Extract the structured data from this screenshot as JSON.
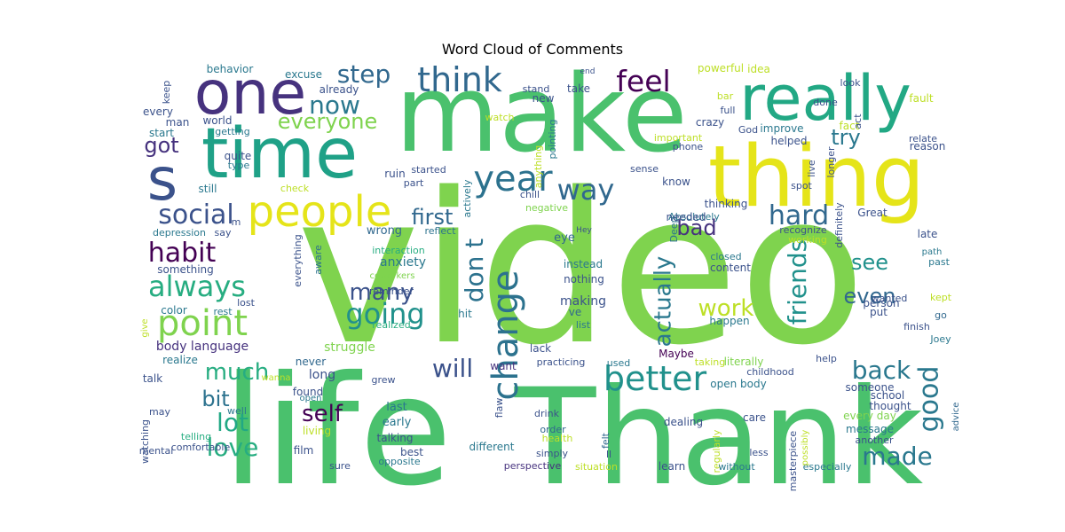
{
  "chart_data": {
    "type": "wordcloud",
    "title": "Word Cloud of Comments",
    "colormap": "viridis",
    "background": "#ffffff",
    "words": [
      {
        "text": "video",
        "weight": 100,
        "color": "#7fd34e"
      },
      {
        "text": "life",
        "weight": 52,
        "color": "#4ac16d"
      },
      {
        "text": "Thank",
        "weight": 52,
        "color": "#4ac16d"
      },
      {
        "text": "make",
        "weight": 42,
        "color": "#4ac16d"
      },
      {
        "text": "thing",
        "weight": 33,
        "color": "#e5e419"
      },
      {
        "text": "time",
        "weight": 31,
        "color": "#1fa187"
      },
      {
        "text": "really",
        "weight": 28,
        "color": "#22a884"
      },
      {
        "text": "one",
        "weight": 27,
        "color": "#46327e"
      },
      {
        "text": "s",
        "weight": 26,
        "color": "#3b528b"
      },
      {
        "text": "people",
        "weight": 19,
        "color": "#e5e419"
      },
      {
        "text": "year",
        "weight": 17,
        "color": "#2c728e"
      },
      {
        "text": "change",
        "weight": 17,
        "color": "#2c728e"
      },
      {
        "text": "think",
        "weight": 15,
        "color": "#31688e"
      },
      {
        "text": "better",
        "weight": 14,
        "color": "#21918c"
      },
      {
        "text": "point",
        "weight": 14,
        "color": "#7fd34e"
      },
      {
        "text": "feel",
        "weight": 13,
        "color": "#440154"
      },
      {
        "text": "going",
        "weight": 12,
        "color": "#21918c"
      },
      {
        "text": "way",
        "weight": 12,
        "color": "#31688e"
      },
      {
        "text": "always",
        "weight": 12,
        "color": "#27ad81"
      },
      {
        "text": "habit",
        "weight": 11,
        "color": "#440154"
      },
      {
        "text": "social",
        "weight": 11,
        "color": "#3b528b"
      },
      {
        "text": "hard",
        "weight": 11,
        "color": "#31688e"
      },
      {
        "text": "good",
        "weight": 11,
        "color": "#2a788e"
      },
      {
        "text": "friends",
        "weight": 10,
        "color": "#21918c"
      },
      {
        "text": "will",
        "weight": 10,
        "color": "#3b528b"
      },
      {
        "text": "now",
        "weight": 10,
        "color": "#2a788e"
      },
      {
        "text": "don t",
        "weight": 10,
        "color": "#2c728e"
      },
      {
        "text": "actually",
        "weight": 10,
        "color": "#2a788e"
      },
      {
        "text": "lot",
        "weight": 10,
        "color": "#22a884"
      },
      {
        "text": "step",
        "weight": 10,
        "color": "#31688e"
      },
      {
        "text": "many",
        "weight": 9,
        "color": "#3b528b"
      },
      {
        "text": "back",
        "weight": 9,
        "color": "#2a788e"
      },
      {
        "text": "made",
        "weight": 9,
        "color": "#2a788e"
      },
      {
        "text": "work",
        "weight": 9,
        "color": "#bddf26"
      },
      {
        "text": "love",
        "weight": 9,
        "color": "#27ad81"
      },
      {
        "text": "self",
        "weight": 9,
        "color": "#440154"
      },
      {
        "text": "much",
        "weight": 9,
        "color": "#27ad81"
      },
      {
        "text": "everyone",
        "weight": 9,
        "color": "#7fd34e"
      },
      {
        "text": "first",
        "weight": 8,
        "color": "#31688e"
      },
      {
        "text": "try",
        "weight": 8,
        "color": "#2a788e"
      },
      {
        "text": "bad",
        "weight": 8,
        "color": "#46327e"
      },
      {
        "text": "see",
        "weight": 8,
        "color": "#21918c"
      },
      {
        "text": "even",
        "weight": 8,
        "color": "#31688e"
      },
      {
        "text": "bit",
        "weight": 8,
        "color": "#2c728e"
      },
      {
        "text": "got",
        "weight": 8,
        "color": "#46327e"
      },
      {
        "text": "body language",
        "weight": 6,
        "color": "#46327e"
      },
      {
        "text": "struggle",
        "weight": 5,
        "color": "#7fd34e"
      },
      {
        "text": "anxiety",
        "weight": 5,
        "color": "#2a788e"
      },
      {
        "text": "making",
        "weight": 5,
        "color": "#3b528b"
      },
      {
        "text": "content",
        "weight": 4,
        "color": "#3b528b"
      },
      {
        "text": "actively",
        "weight": 3,
        "color": "#2a788e"
      },
      {
        "text": "reflect",
        "weight": 3,
        "color": "#2c728e"
      },
      {
        "text": "negative",
        "weight": 3,
        "color": "#7fd34e"
      },
      {
        "text": "eye",
        "weight": 4,
        "color": "#31688e"
      },
      {
        "text": "wrong",
        "weight": 4,
        "color": "#31688e"
      },
      {
        "text": "interaction",
        "weight": 3,
        "color": "#27ad81"
      },
      {
        "text": "everything",
        "weight": 3,
        "color": "#3b528b"
      },
      {
        "text": "aware",
        "weight": 3,
        "color": "#2c728e"
      },
      {
        "text": "Deep",
        "weight": 3,
        "color": "#2c728e"
      },
      {
        "text": "thinking",
        "weight": 4,
        "color": "#3b528b"
      },
      {
        "text": "Absolutely",
        "weight": 3,
        "color": "#2a788e"
      },
      {
        "text": "depression",
        "weight": 3,
        "color": "#2a788e"
      },
      {
        "text": "reminder",
        "weight": 3,
        "color": "#3b528b"
      },
      {
        "text": "coworkers",
        "weight": 3,
        "color": "#7fd34e"
      },
      {
        "text": "realized",
        "weight": 3,
        "color": "#27ad81"
      },
      {
        "text": "instead",
        "weight": 4,
        "color": "#2a788e"
      },
      {
        "text": "nothing",
        "weight": 4,
        "color": "#3b528b"
      },
      {
        "text": "ve",
        "weight": 4,
        "color": "#31688e"
      },
      {
        "text": "list",
        "weight": 3,
        "color": "#2a788e"
      },
      {
        "text": "hit",
        "weight": 4,
        "color": "#2a788e"
      },
      {
        "text": "lack",
        "weight": 4,
        "color": "#3b528b"
      },
      {
        "text": "Maybe",
        "weight": 4,
        "color": "#440154"
      },
      {
        "text": "practicing",
        "weight": 4,
        "color": "#3b528b"
      },
      {
        "text": "used",
        "weight": 4,
        "color": "#2a788e"
      },
      {
        "text": "want",
        "weight": 4,
        "color": "#46327e"
      },
      {
        "text": "realize",
        "weight": 4,
        "color": "#2a788e"
      },
      {
        "text": "never",
        "weight": 4,
        "color": "#31688e"
      },
      {
        "text": "long",
        "weight": 5,
        "color": "#3b528b"
      },
      {
        "text": "found",
        "weight": 5,
        "color": "#3b528b"
      },
      {
        "text": "last",
        "weight": 5,
        "color": "#2a788e"
      },
      {
        "text": "early",
        "weight": 5,
        "color": "#2a788e"
      },
      {
        "text": "living",
        "weight": 5,
        "color": "#bddf26"
      },
      {
        "text": "film",
        "weight": 5,
        "color": "#3b528b"
      },
      {
        "text": "talking",
        "weight": 4,
        "color": "#3b528b"
      },
      {
        "text": "best",
        "weight": 5,
        "color": "#3b528b"
      },
      {
        "text": "different",
        "weight": 5,
        "color": "#2a788e"
      },
      {
        "text": "opposite",
        "weight": 3,
        "color": "#2a788e"
      },
      {
        "text": "comfortable",
        "weight": 3,
        "color": "#3b528b"
      },
      {
        "text": "telling",
        "weight": 3,
        "color": "#27ad81"
      },
      {
        "text": "grew",
        "weight": 3,
        "color": "#3b528b"
      },
      {
        "text": "flaw",
        "weight": 3,
        "color": "#3b528b"
      },
      {
        "text": "drink",
        "weight": 3,
        "color": "#3b528b"
      },
      {
        "text": "order",
        "weight": 3,
        "color": "#31688e"
      },
      {
        "text": "health",
        "weight": 3,
        "color": "#bddf26"
      },
      {
        "text": "simply",
        "weight": 3,
        "color": "#3b528b"
      },
      {
        "text": "ll",
        "weight": 3,
        "color": "#3b528b"
      },
      {
        "text": "felt",
        "weight": 3,
        "color": "#31688e"
      },
      {
        "text": "perspective",
        "weight": 3,
        "color": "#46327e"
      },
      {
        "text": "situation",
        "weight": 3,
        "color": "#bddf26"
      },
      {
        "text": "learn",
        "weight": 4,
        "color": "#3b528b"
      },
      {
        "text": "dealing",
        "weight": 4,
        "color": "#3b528b"
      },
      {
        "text": "regularly",
        "weight": 3,
        "color": "#bddf26"
      },
      {
        "text": "without",
        "weight": 3,
        "color": "#2a788e"
      },
      {
        "text": "care",
        "weight": 4,
        "color": "#3b528b"
      },
      {
        "text": "less",
        "weight": 3,
        "color": "#3b528b"
      },
      {
        "text": "masterpiece",
        "weight": 3,
        "color": "#3b528b"
      },
      {
        "text": "especially",
        "weight": 3,
        "color": "#2a788e"
      },
      {
        "text": "another",
        "weight": 3,
        "color": "#3b528b"
      },
      {
        "text": "message",
        "weight": 4,
        "color": "#2a788e"
      },
      {
        "text": "every day",
        "weight": 4,
        "color": "#7fd34e"
      },
      {
        "text": "thought",
        "weight": 4,
        "color": "#3b528b"
      },
      {
        "text": "school",
        "weight": 4,
        "color": "#3b528b"
      },
      {
        "text": "someone",
        "weight": 4,
        "color": "#3b528b"
      },
      {
        "text": "open body",
        "weight": 4,
        "color": "#2a788e"
      },
      {
        "text": "literally",
        "weight": 4,
        "color": "#7fd34e"
      },
      {
        "text": "childhood",
        "weight": 3,
        "color": "#3b528b"
      },
      {
        "text": "taking",
        "weight": 3,
        "color": "#bddf26"
      },
      {
        "text": "help",
        "weight": 3,
        "color": "#3b528b"
      },
      {
        "text": "possibly",
        "weight": 3,
        "color": "#bddf26"
      },
      {
        "text": "advice",
        "weight": 3,
        "color": "#31688e"
      },
      {
        "text": "Joey",
        "weight": 3,
        "color": "#2a788e"
      },
      {
        "text": "finish",
        "weight": 3,
        "color": "#3b528b"
      },
      {
        "text": "go",
        "weight": 3,
        "color": "#31688e"
      },
      {
        "text": "kept",
        "weight": 3,
        "color": "#bddf26"
      },
      {
        "text": "put",
        "weight": 4,
        "color": "#3b528b"
      },
      {
        "text": "person",
        "weight": 4,
        "color": "#3b528b"
      },
      {
        "text": "wanted",
        "weight": 3,
        "color": "#3b528b"
      },
      {
        "text": "past",
        "weight": 3,
        "color": "#2a788e"
      },
      {
        "text": "path",
        "weight": 3,
        "color": "#2a788e"
      },
      {
        "text": "late",
        "weight": 4,
        "color": "#3b528b"
      },
      {
        "text": "happen",
        "weight": 4,
        "color": "#2a788e"
      },
      {
        "text": "closed",
        "weight": 3,
        "color": "#2a788e"
      },
      {
        "text": "working",
        "weight": 3,
        "color": "#bddf26"
      },
      {
        "text": "recognize",
        "weight": 3,
        "color": "#3b528b"
      },
      {
        "text": "Great",
        "weight": 4,
        "color": "#3b528b"
      },
      {
        "text": "definitely",
        "weight": 3,
        "color": "#3b528b"
      },
      {
        "text": "spot",
        "weight": 3,
        "color": "#3b528b"
      },
      {
        "text": "live",
        "weight": 3,
        "color": "#3b528b"
      },
      {
        "text": "longer",
        "weight": 3,
        "color": "#3b528b"
      },
      {
        "text": "reason",
        "weight": 4,
        "color": "#3b528b"
      },
      {
        "text": "relate",
        "weight": 3,
        "color": "#3b528b"
      },
      {
        "text": "fact",
        "weight": 4,
        "color": "#bddf26"
      },
      {
        "text": "act",
        "weight": 3,
        "color": "#3b528b"
      },
      {
        "text": "look",
        "weight": 3,
        "color": "#3b528b"
      },
      {
        "text": "done",
        "weight": 3,
        "color": "#3b528b"
      },
      {
        "text": "fault",
        "weight": 4,
        "color": "#bddf26"
      },
      {
        "text": "idea",
        "weight": 4,
        "color": "#bddf26"
      },
      {
        "text": "powerful",
        "weight": 4,
        "color": "#bddf26"
      },
      {
        "text": "end",
        "weight": 2,
        "color": "#3b528b"
      },
      {
        "text": "new",
        "weight": 4,
        "color": "#3b528b"
      },
      {
        "text": "stand",
        "weight": 3,
        "color": "#3b528b"
      },
      {
        "text": "take",
        "weight": 4,
        "color": "#3b528b"
      },
      {
        "text": "bar",
        "weight": 3,
        "color": "#bddf26"
      },
      {
        "text": "full",
        "weight": 3,
        "color": "#3b528b"
      },
      {
        "text": "God",
        "weight": 3,
        "color": "#3b528b"
      },
      {
        "text": "crazy",
        "weight": 4,
        "color": "#3b528b"
      },
      {
        "text": "important",
        "weight": 3,
        "color": "#bddf26"
      },
      {
        "text": "phone",
        "weight": 3,
        "color": "#3b528b"
      },
      {
        "text": "improve",
        "weight": 4,
        "color": "#2a788e"
      },
      {
        "text": "helped",
        "weight": 4,
        "color": "#3b528b"
      },
      {
        "text": "watch",
        "weight": 3,
        "color": "#bddf26"
      },
      {
        "text": "pointing",
        "weight": 3,
        "color": "#2a788e"
      },
      {
        "text": "anything",
        "weight": 3,
        "color": "#bddf26"
      },
      {
        "text": "sense",
        "weight": 3,
        "color": "#3b528b"
      },
      {
        "text": "chill",
        "weight": 3,
        "color": "#3b528b"
      },
      {
        "text": "Hey",
        "weight": 2,
        "color": "#3b528b"
      },
      {
        "text": "know",
        "weight": 4,
        "color": "#3b528b"
      },
      {
        "text": "needed",
        "weight": 4,
        "color": "#3b528b"
      },
      {
        "text": "started",
        "weight": 3,
        "color": "#3b528b"
      },
      {
        "text": "part",
        "weight": 3,
        "color": "#3b528b"
      },
      {
        "text": "ruin",
        "weight": 4,
        "color": "#3b528b"
      },
      {
        "text": "check",
        "weight": 3,
        "color": "#bddf26"
      },
      {
        "text": "m",
        "weight": 3,
        "color": "#3b528b"
      },
      {
        "text": "excuse",
        "weight": 4,
        "color": "#2a788e"
      },
      {
        "text": "already",
        "weight": 4,
        "color": "#3b528b"
      },
      {
        "text": "behavior",
        "weight": 4,
        "color": "#2a788e"
      },
      {
        "text": "keep",
        "weight": 3,
        "color": "#3b528b"
      },
      {
        "text": "every",
        "weight": 4,
        "color": "#3b528b"
      },
      {
        "text": "man",
        "weight": 4,
        "color": "#3b528b"
      },
      {
        "text": "world",
        "weight": 4,
        "color": "#3b528b"
      },
      {
        "text": "getting",
        "weight": 3,
        "color": "#2a788e"
      },
      {
        "text": "start",
        "weight": 4,
        "color": "#2a788e"
      },
      {
        "text": "quite",
        "weight": 4,
        "color": "#3b528b"
      },
      {
        "text": "type",
        "weight": 3,
        "color": "#2a788e"
      },
      {
        "text": "still",
        "weight": 4,
        "color": "#2a788e"
      },
      {
        "text": "say",
        "weight": 4,
        "color": "#3b528b"
      },
      {
        "text": "something",
        "weight": 4,
        "color": "#3b528b"
      },
      {
        "text": "color",
        "weight": 4,
        "color": "#2a788e"
      },
      {
        "text": "rest",
        "weight": 3,
        "color": "#2a788e"
      },
      {
        "text": "lost",
        "weight": 3,
        "color": "#3b528b"
      },
      {
        "text": "give",
        "weight": 3,
        "color": "#bddf26"
      },
      {
        "text": "talk",
        "weight": 4,
        "color": "#3b528b"
      },
      {
        "text": "wanna",
        "weight": 3,
        "color": "#bddf26"
      },
      {
        "text": "may",
        "weight": 3,
        "color": "#3b528b"
      },
      {
        "text": "well",
        "weight": 4,
        "color": "#2a788e"
      },
      {
        "text": "open",
        "weight": 3,
        "color": "#2a788e"
      },
      {
        "text": "watching",
        "weight": 3,
        "color": "#3b528b"
      },
      {
        "text": "mental",
        "weight": 4,
        "color": "#3b528b"
      },
      {
        "text": "sure",
        "weight": 3,
        "color": "#3b528b"
      }
    ]
  }
}
